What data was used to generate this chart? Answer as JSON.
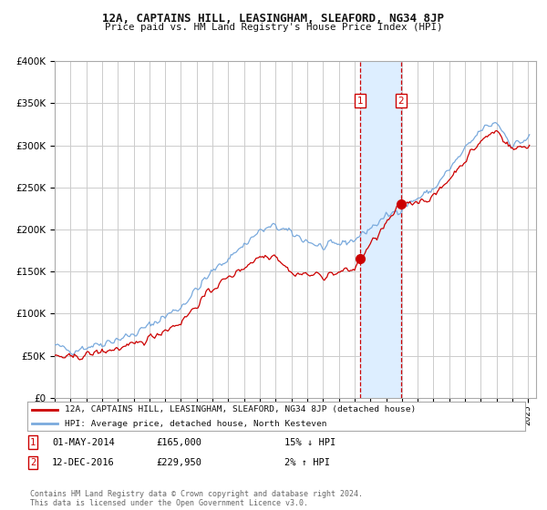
{
  "title": "12A, CAPTAINS HILL, LEASINGHAM, SLEAFORD, NG34 8JP",
  "subtitle": "Price paid vs. HM Land Registry's House Price Index (HPI)",
  "legend_line1": "12A, CAPTAINS HILL, LEASINGHAM, SLEAFORD, NG34 8JP (detached house)",
  "legend_line2": "HPI: Average price, detached house, North Kesteven",
  "transaction1_date": "01-MAY-2014",
  "transaction1_price": 165000,
  "transaction1_label": "15% ↓ HPI",
  "transaction2_date": "12-DEC-2016",
  "transaction2_price": 229950,
  "transaction2_label": "2% ↑ HPI",
  "copyright_text": "Contains HM Land Registry data © Crown copyright and database right 2024.\nThis data is licensed under the Open Government Licence v3.0.",
  "hpi_color": "#7aaadd",
  "price_color": "#cc0000",
  "marker_color": "#cc0000",
  "vline_color": "#cc0000",
  "shade_color": "#ddeeff",
  "grid_color": "#cccccc",
  "background_color": "#ffffff",
  "title_color": "#111111",
  "ylim": [
    0,
    400000
  ],
  "yticks": [
    0,
    50000,
    100000,
    150000,
    200000,
    250000,
    300000,
    350000,
    400000
  ],
  "ytick_labels": [
    "£0",
    "£50K",
    "£100K",
    "£150K",
    "£200K",
    "£250K",
    "£300K",
    "£350K",
    "£400K"
  ],
  "transaction1_x": 2014.33,
  "transaction2_x": 2016.95,
  "xlim_start": 1995.0,
  "xlim_end": 2025.5
}
